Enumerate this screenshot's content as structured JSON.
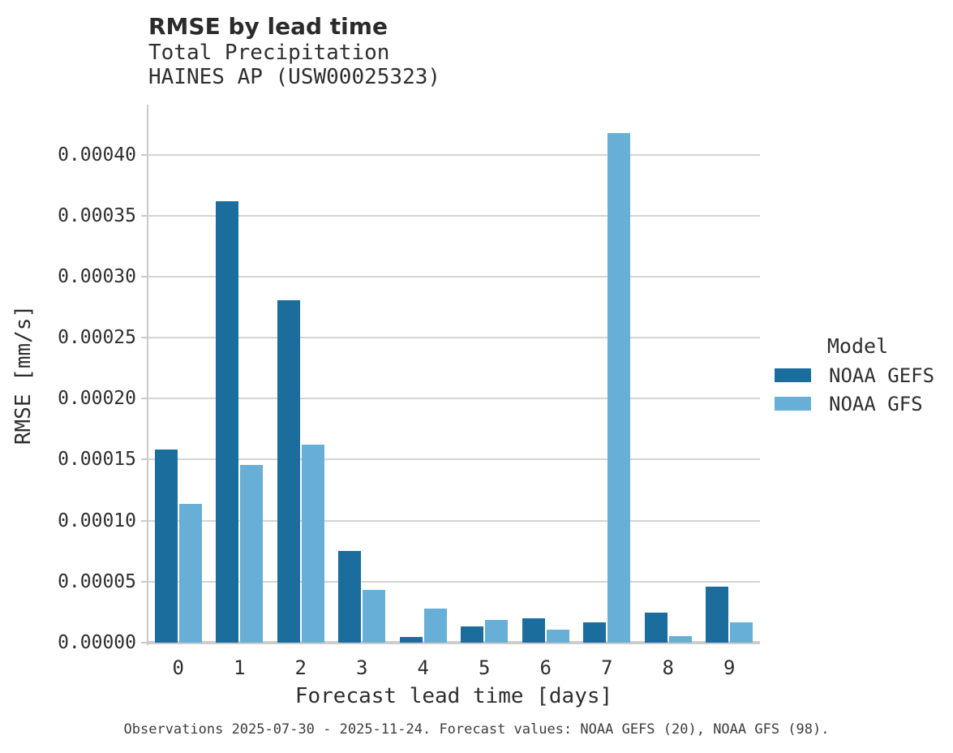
{
  "header": {
    "title": "RMSE by lead time",
    "subtitle1": "Total Precipitation",
    "subtitle2": "HAINES AP (USW00025323)"
  },
  "chart_data": {
    "type": "bar",
    "title": "RMSE by lead time",
    "subtitle": [
      "Total Precipitation",
      "HAINES AP (USW00025323)"
    ],
    "categories": [
      "0",
      "1",
      "2",
      "3",
      "4",
      "5",
      "6",
      "7",
      "8",
      "9"
    ],
    "series": [
      {
        "name": "NOAA GEFS",
        "color": "#1A6D9C",
        "values": [
          0.000158,
          0.000362,
          0.000281,
          7.5e-05,
          4.4e-06,
          1.3e-05,
          2e-05,
          1.65e-05,
          2.45e-05,
          4.6e-05
        ]
      },
      {
        "name": "NOAA GFS",
        "color": "#67AFD7",
        "values": [
          0.000114,
          0.000146,
          0.000162,
          4.3e-05,
          2.8e-05,
          1.83e-05,
          1.06e-05,
          0.000418,
          5.2e-06,
          1.63e-05
        ]
      }
    ],
    "xlabel": "Forecast lead time [days]",
    "ylabel": "RMSE [mm/s]",
    "ylim": [
      0,
      0.000441
    ],
    "yticks": [
      0.0,
      5e-05,
      0.0001,
      0.00015,
      0.0002,
      0.00025,
      0.0003,
      0.00035,
      0.0004
    ],
    "ytick_labels": [
      "0.00000",
      "0.00005",
      "0.00010",
      "0.00015",
      "0.00020",
      "0.00025",
      "0.00030",
      "0.00035",
      "0.00040"
    ],
    "legend": {
      "title": "Model",
      "position": "right"
    },
    "grid": true,
    "grid_color": "#d4d4d4",
    "background": "#ffffff"
  },
  "caption": {
    "text": "Observations 2025-07-30 - 2025-11-24. Forecast values: NOAA GEFS (20), NOAA GFS (98)."
  }
}
